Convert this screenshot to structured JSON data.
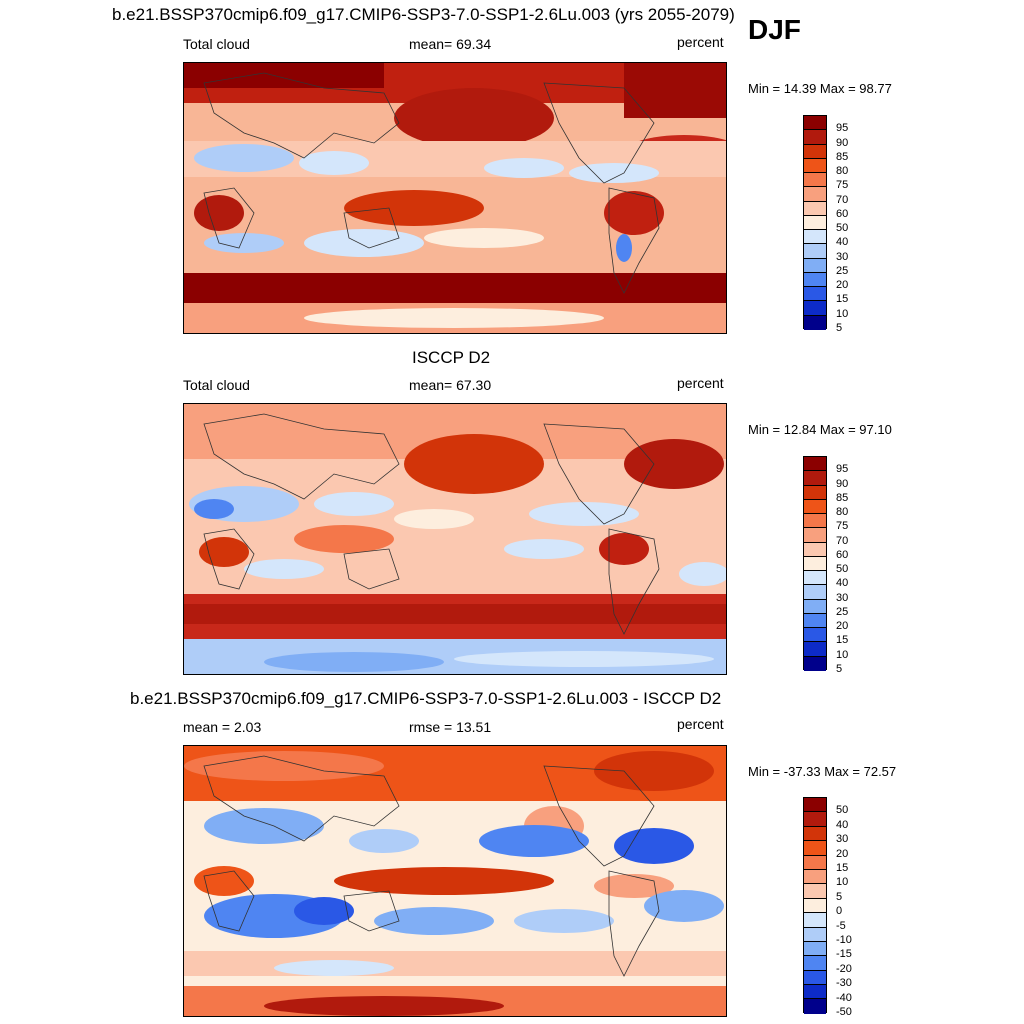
{
  "season": "DJF",
  "panels": [
    {
      "title": "b.e21.BSSP370cmip6.f09_g17.CMIP6-SSP3-7.0-SSP1-2.6Lu.003 (yrs 2055-2079)",
      "left_label": "Total cloud",
      "center_label": "mean=  69.34",
      "right_label": "percent",
      "minmax": "Min =  14.39 Max =  98.77",
      "legend": [
        "95",
        "90",
        "85",
        "80",
        "75",
        "70",
        "60",
        "50",
        "40",
        "30",
        "25",
        "20",
        "15",
        "10",
        "5"
      ],
      "colors": [
        "#8b0000",
        "#b11a0d",
        "#d23409",
        "#ee5418",
        "#f4774a",
        "#f8a07e",
        "#fbc8b0",
        "#fdeede",
        "#d4e6fb",
        "#afcdf8",
        "#80aef5",
        "#4f85f2",
        "#2a58e6",
        "#0d2bc8",
        "#00008b"
      ]
    },
    {
      "title": "ISCCP D2",
      "left_label": "Total cloud",
      "center_label": "mean=  67.30",
      "right_label": "percent",
      "minmax": "Min =  12.84 Max =  97.10",
      "legend": [
        "95",
        "90",
        "85",
        "80",
        "75",
        "70",
        "60",
        "50",
        "40",
        "30",
        "25",
        "20",
        "15",
        "10",
        "5"
      ],
      "colors": [
        "#8b0000",
        "#b11a0d",
        "#d23409",
        "#ee5418",
        "#f4774a",
        "#f8a07e",
        "#fbc8b0",
        "#fdeede",
        "#d4e6fb",
        "#afcdf8",
        "#80aef5",
        "#4f85f2",
        "#2a58e6",
        "#0d2bc8",
        "#00008b"
      ]
    },
    {
      "title": "b.e21.BSSP370cmip6.f09_g17.CMIP6-SSP3-7.0-SSP1-2.6Lu.003 - ISCCP D2",
      "left_label": "mean =   2.03",
      "center_label": "rmse =  13.51",
      "right_label": "percent",
      "minmax": "Min = -37.33 Max =  72.57",
      "legend": [
        "50",
        "40",
        "30",
        "20",
        "15",
        "10",
        "5",
        "0",
        "-5",
        "-10",
        "-15",
        "-20",
        "-30",
        "-40",
        "-50"
      ],
      "colors": [
        "#8b0000",
        "#b11a0d",
        "#d23409",
        "#ee5418",
        "#f4774a",
        "#f8a07e",
        "#fbc8b0",
        "#fdeede",
        "#d4e6fb",
        "#afcdf8",
        "#80aef5",
        "#4f85f2",
        "#2a58e6",
        "#0d2bc8",
        "#00008b"
      ]
    }
  ]
}
